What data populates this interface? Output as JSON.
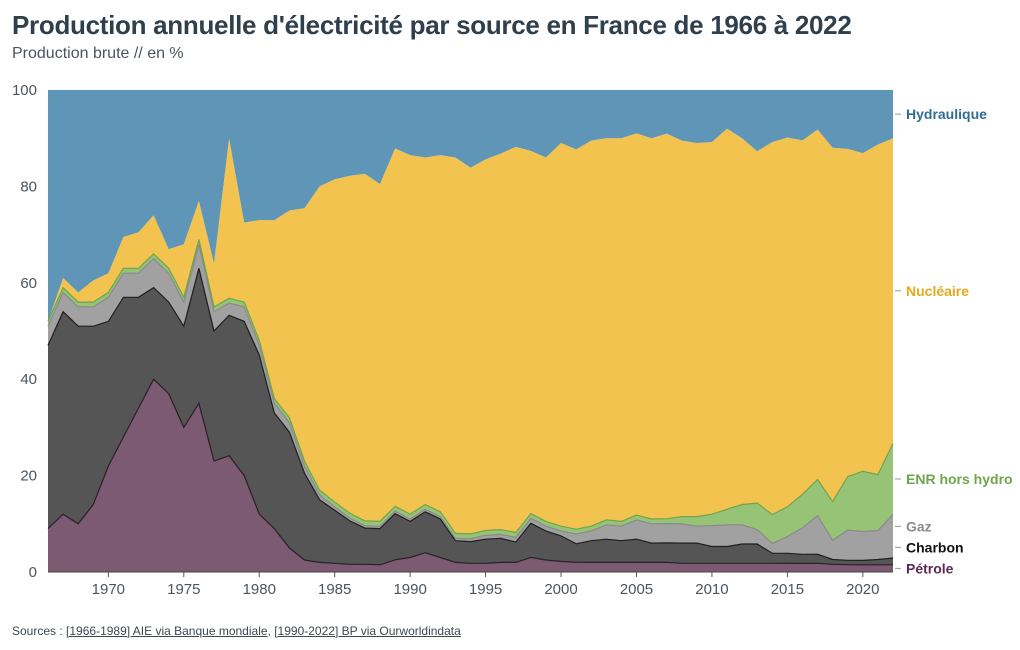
{
  "header": {
    "title": "Production annuelle d'électricité par source en France de 1966 à 2022",
    "subtitle": "Production brute // en %"
  },
  "footer": {
    "prefix": "Sources :",
    "link1": "[1966-1989] AIE via Banque mondiale",
    "sep": ",",
    "link2": "[1990-2022] BP via Ourworldindata"
  },
  "chart_data": {
    "type": "area",
    "stacked": true,
    "x": [
      1966,
      1967,
      1968,
      1969,
      1970,
      1971,
      1972,
      1973,
      1974,
      1975,
      1976,
      1977,
      1978,
      1979,
      1980,
      1981,
      1982,
      1983,
      1984,
      1985,
      1986,
      1987,
      1988,
      1989,
      1990,
      1991,
      1992,
      1993,
      1994,
      1995,
      1996,
      1997,
      1998,
      1999,
      2000,
      2001,
      2002,
      2003,
      2004,
      2005,
      2006,
      2007,
      2008,
      2009,
      2010,
      2011,
      2012,
      2013,
      2014,
      2015,
      2016,
      2017,
      2018,
      2019,
      2020,
      2021,
      2022
    ],
    "xticks": [
      1970,
      1975,
      1980,
      1985,
      1990,
      1995,
      2000,
      2005,
      2010,
      2015,
      2020
    ],
    "ylim": [
      0,
      100
    ],
    "yticks": [
      0,
      20,
      40,
      60,
      80,
      100
    ],
    "series": [
      {
        "name": "Pétrole",
        "color": "#7c5a71",
        "values": [
          9,
          12,
          10,
          14,
          22,
          28,
          34,
          40,
          37,
          30,
          35,
          23,
          24,
          20,
          12,
          9,
          5,
          2.5,
          2,
          1.8,
          1.6,
          1.6,
          1.5,
          2.5,
          3,
          4,
          3,
          2,
          1.8,
          1.8,
          2,
          2,
          3,
          2.5,
          2.2,
          2,
          2,
          2,
          2,
          2,
          2,
          2,
          1.8,
          1.8,
          1.8,
          1.8,
          1.8,
          1.8,
          1.8,
          1.8,
          1.8,
          1.8,
          1.6,
          1.5,
          1.5,
          1.5,
          1.5
        ]
      },
      {
        "name": "Charbon",
        "color": "#555555",
        "values": [
          38,
          42,
          41,
          37,
          30,
          29,
          23,
          19,
          19,
          21,
          28,
          27,
          29,
          32,
          33,
          24,
          24,
          18,
          13,
          11,
          9,
          7.5,
          7.5,
          9.5,
          7.5,
          8.5,
          8,
          4.5,
          4.5,
          5,
          5,
          4.2,
          7,
          6,
          5.3,
          3.8,
          4.5,
          4.8,
          4.5,
          4.8,
          4,
          4,
          4.2,
          4.2,
          3.5,
          3.5,
          4,
          4,
          2.1,
          2.1,
          1.9,
          1.9,
          1,
          0.9,
          0.9,
          1.1,
          1.4
        ]
      },
      {
        "name": "Gaz",
        "color": "#a1a1a1",
        "values": [
          4,
          4,
          4,
          4,
          5,
          5,
          5,
          6,
          6,
          5,
          5,
          4,
          2.5,
          3,
          2,
          2,
          2,
          1.5,
          1,
          0.7,
          0.6,
          0.5,
          0.5,
          0.5,
          0.5,
          0.5,
          0.5,
          0.5,
          0.6,
          0.8,
          0.8,
          1,
          1,
          1,
          1,
          2,
          2,
          3,
          3,
          4,
          4,
          4,
          4,
          3.5,
          4.3,
          4.5,
          4,
          3,
          2,
          3.5,
          5.5,
          8,
          4,
          6.2,
          6,
          6,
          9
        ]
      },
      {
        "name": "ENR hors hydro",
        "color": "#96c375",
        "values": [
          1,
          1,
          1,
          1,
          1,
          1,
          1,
          1,
          1,
          1,
          1,
          1,
          1,
          1,
          1,
          1,
          1,
          1,
          1,
          1,
          1,
          1,
          1,
          1,
          1,
          1,
          1,
          1,
          1,
          1,
          1,
          1,
          1,
          1,
          1,
          1,
          1,
          1,
          1,
          1,
          1,
          1,
          1.5,
          2,
          2.4,
          3.2,
          4.2,
          5.5,
          6,
          6.2,
          7,
          7.5,
          8,
          11,
          12.5,
          11.6,
          14.8
        ]
      },
      {
        "name": "Nucléaire",
        "color": "#f2c34f",
        "values": [
          0,
          2,
          2,
          4.5,
          4,
          6.5,
          7.5,
          8,
          4,
          11,
          8,
          9,
          33,
          16.5,
          25,
          37,
          43,
          52.5,
          63,
          67,
          70,
          72,
          70,
          73.5,
          74.5,
          72,
          74,
          78,
          76,
          77,
          78,
          80,
          74.5,
          75.5,
          79.5,
          78,
          80,
          79.2,
          79.5,
          79.2,
          79,
          79.5,
          78,
          77.5,
          77.2,
          79,
          76,
          73,
          77.3,
          77,
          73.8,
          72.6,
          73.4,
          67.3,
          66,
          68.5,
          63.3
        ]
      },
      {
        "name": "Hydraulique",
        "color": "#5f95b7",
        "values": [
          48,
          39,
          42,
          39.5,
          38,
          30.5,
          29.5,
          26,
          33,
          32,
          23,
          36,
          10,
          27.5,
          27,
          27,
          25,
          24.5,
          20,
          18.5,
          17.8,
          17.4,
          19.5,
          12,
          13.5,
          14,
          13.5,
          14,
          16.1,
          14.4,
          13.2,
          11.8,
          12.5,
          14,
          11,
          12.2,
          10.5,
          10,
          10,
          9,
          10,
          9,
          10.5,
          11,
          10.8,
          8,
          10,
          12.7,
          10.8,
          9.9,
          10.5,
          8.2,
          12,
          12.1,
          13.1,
          11.3,
          10
        ]
      }
    ]
  }
}
